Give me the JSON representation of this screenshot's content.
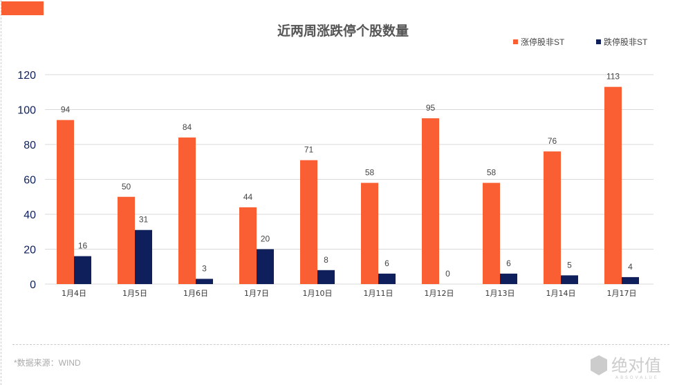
{
  "chart_data": {
    "type": "bar",
    "title": "近两周涨跌停个股数量",
    "categories": [
      "1月4日",
      "1月5日",
      "1月6日",
      "1月7日",
      "1月10日",
      "1月11日",
      "1月12日",
      "1月13日",
      "1月14日",
      "1月17日"
    ],
    "series": [
      {
        "name": "涨停股非ST",
        "color": "#f95f32",
        "values": [
          94,
          50,
          84,
          44,
          71,
          58,
          95,
          58,
          76,
          113
        ]
      },
      {
        "name": "跌停股非ST",
        "color": "#0e1f5b",
        "values": [
          16,
          31,
          3,
          20,
          8,
          6,
          0,
          6,
          5,
          4
        ]
      }
    ],
    "ylim": [
      0,
      120
    ],
    "yticks": [
      0,
      20,
      40,
      60,
      80,
      100,
      120
    ],
    "grid": true,
    "legend": "top-right"
  },
  "footer": {
    "source": "*数据来源：WIND",
    "logo_text": "绝对值",
    "logo_sub": "ABSOVALUE"
  }
}
